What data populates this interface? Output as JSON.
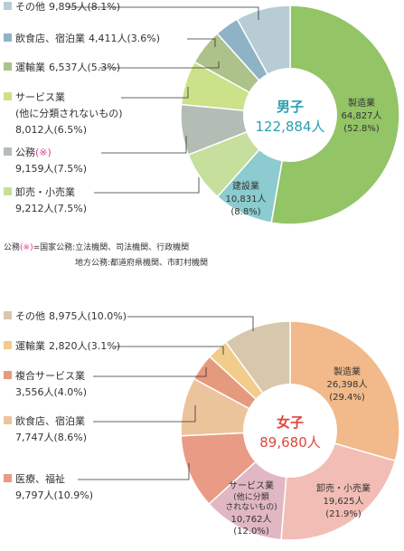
{
  "chart_data": [
    {
      "type": "pie",
      "center_title": "男子",
      "center_total": "122,884人",
      "accent_color": "#2a9fb0",
      "slices": [
        {
          "name": "製造業",
          "value": 64827,
          "value_text": "64,827人",
          "pct_text": "(52.8%)",
          "percent": 52.8,
          "color": "#93c466"
        },
        {
          "name": "建設業",
          "value": 10831,
          "value_text": "10,831人",
          "pct_text": "(8.8%)",
          "percent": 8.8,
          "color": "#8ccbcf"
        },
        {
          "name": "卸売・小売業",
          "value": 9212,
          "value_text": "9,212人",
          "pct_text": "(7.5%)",
          "percent": 7.5,
          "color": "#c6df9c"
        },
        {
          "name": "公務",
          "value": 9159,
          "value_text": "9,159人",
          "pct_text": "(7.5%)",
          "percent": 7.5,
          "color": "#b4bcb6",
          "mark": "(※)"
        },
        {
          "name": "サービス業",
          "sub": "(他に分類されないもの)",
          "value": 8012,
          "value_text": "8,012人",
          "pct_text": "(6.5%)",
          "percent": 6.5,
          "color": "#cbe18a"
        },
        {
          "name": "運輸業",
          "value": 6537,
          "value_text": "6,537人",
          "pct_text": "(5.3%)",
          "percent": 5.3,
          "color": "#adc28a"
        },
        {
          "name": "飲食店、宿泊業",
          "value": 4411,
          "value_text": "4,411人",
          "pct_text": "(3.6%)",
          "percent": 3.6,
          "color": "#8fb3c6"
        },
        {
          "name": "その他",
          "value": 9895,
          "value_text": "9,895人",
          "pct_text": "(8.1%)",
          "percent": 8.1,
          "color": "#b8ccd6"
        }
      ]
    },
    {
      "type": "pie",
      "center_title": "女子",
      "center_total": "89,680人",
      "accent_color": "#e0453d",
      "slices": [
        {
          "name": "製造業",
          "value": 26398,
          "value_text": "26,398人",
          "pct_text": "(29.4%)",
          "percent": 29.4,
          "color": "#f2b98a"
        },
        {
          "name": "卸売・小売業",
          "value": 19625,
          "value_text": "19,625人",
          "pct_text": "(21.9%)",
          "percent": 21.9,
          "color": "#f2bdb5"
        },
        {
          "name": "サービス業",
          "sub": "(他に分類されないもの)",
          "value": 10762,
          "value_text": "10,762人",
          "pct_text": "(12.0%)",
          "percent": 12.0,
          "color": "#e0b7c3"
        },
        {
          "name": "医療、福祉",
          "value": 9797,
          "value_text": "9,797人",
          "pct_text": "(10.9%)",
          "percent": 10.9,
          "color": "#e99b86"
        },
        {
          "name": "飲食店、宿泊業",
          "value": 7747,
          "value_text": "7,747人",
          "pct_text": "(8.6%)",
          "percent": 8.6,
          "color": "#ecc49c"
        },
        {
          "name": "複合サービス業",
          "value": 3556,
          "value_text": "3,556人",
          "pct_text": "(4.0%)",
          "percent": 4.0,
          "color": "#e69a7d"
        },
        {
          "name": "運輸業",
          "value": 2820,
          "value_text": "2,820人",
          "pct_text": "(3.1%)",
          "percent": 3.1,
          "color": "#f1cc8a"
        },
        {
          "name": "その他",
          "value": 8975,
          "value_text": "8,975人",
          "pct_text": "(10.0%)",
          "percent": 10.0,
          "color": "#d7c7ac"
        }
      ]
    }
  ],
  "chart1_labels": {
    "other": {
      "name": "その他",
      "stat": "9,895人(8.1%)"
    },
    "food": {
      "name": "飲食店、宿泊業",
      "stat": "4,411人(3.6%)"
    },
    "transport": {
      "name": "運輸業",
      "stat": "6,537人(5.3%)"
    },
    "service_l1": "サービス業",
    "service_l2": "(他に分類されないもの)",
    "service_l3": "8,012人(6.5%)",
    "public_name": "公務",
    "public_mark": "(※)",
    "public_stat": "9,159人(7.5%)",
    "retail_name": "卸売・小売業",
    "retail_stat": "9,212人(7.5%)",
    "mfg_name": "製造業",
    "mfg_val": "64,827人",
    "mfg_pct": "(52.8%)",
    "const_name": "建設業",
    "const_val": "10,831人",
    "const_pct": "(8.8%)"
  },
  "note": {
    "line1_prefix": "公務",
    "line1_mark": "(※)",
    "line1_rest": "=国家公務:立法機関、司法機関、行政機関",
    "line2": "地方公務:都道府県機関、市町村機関"
  },
  "chart2_labels": {
    "other": {
      "name": "その他",
      "stat": "8,975人(10.0%)"
    },
    "transport": {
      "name": "運輸業",
      "stat": "2,820人(3.1%)"
    },
    "complex_name": "複合サービス業",
    "complex_stat": "3,556人(4.0%)",
    "food_name": "飲食店、宿泊業",
    "food_stat": "7,747人(8.6%)",
    "medical_name": "医療、福祉",
    "medical_stat": "9,797人(10.9%)",
    "mfg_name": "製造業",
    "mfg_val": "26,398人",
    "mfg_pct": "(29.4%)",
    "retail_name": "卸売・小売業",
    "retail_val": "19,625人",
    "retail_pct": "(21.9%)",
    "service_l1": "サービス業",
    "service_l2": "(他に分類",
    "service_l3": "されないもの)",
    "service_val": "10,762人",
    "service_pct": "(12.0%)"
  }
}
